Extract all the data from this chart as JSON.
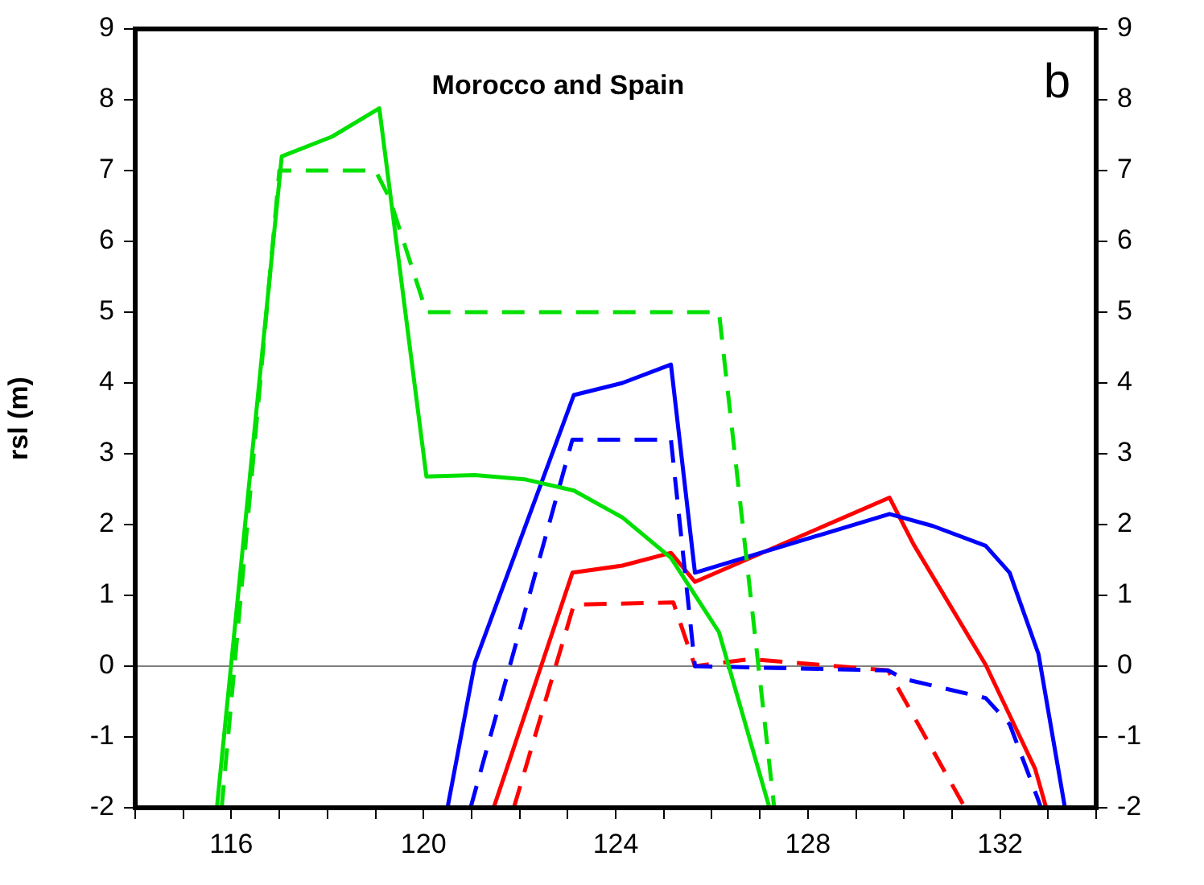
{
  "chart_data": {
    "type": "line",
    "title": "Morocco and Spain",
    "ylabel": "rsl (m)",
    "annotations": [
      "b"
    ],
    "xlim": [
      114,
      134
    ],
    "xticks": [
      {
        "value": 114,
        "label": null
      },
      {
        "value": 115,
        "label": null
      },
      116,
      {
        "value": 117,
        "label": null
      },
      {
        "value": 118,
        "label": null
      },
      {
        "value": 119,
        "label": null
      },
      120,
      {
        "value": 121,
        "label": null
      },
      {
        "value": 122,
        "label": null
      },
      {
        "value": 123,
        "label": null
      },
      124,
      {
        "value": 125,
        "label": null
      },
      {
        "value": 126,
        "label": null
      },
      {
        "value": 127,
        "label": null
      },
      128,
      {
        "value": 129,
        "label": null
      },
      {
        "value": 130,
        "label": null
      },
      {
        "value": 131,
        "label": null
      },
      132,
      {
        "value": 133,
        "label": null
      },
      {
        "value": 134,
        "label": null
      }
    ],
    "ylim": [
      -2,
      9
    ],
    "yticks": [
      -2,
      -1,
      0,
      1,
      2,
      3,
      4,
      5,
      6,
      7,
      8,
      9
    ],
    "y2lim": [
      -2,
      9
    ],
    "y2ticks": [
      -2,
      -1,
      0,
      1,
      2,
      3,
      4,
      5,
      6,
      7,
      8,
      9
    ],
    "grid": false,
    "legend": false,
    "marker": "none",
    "ref_lines": [
      {
        "axis": "y",
        "value": 0,
        "color": "#808080",
        "line_style": "solid"
      }
    ],
    "series": [
      {
        "color": "#00e000",
        "line_style": "solid",
        "x": [
          115.7,
          117.05,
          118.1,
          119.08,
          120.06,
          121.07,
          122.1,
          123.13,
          124.14,
          125.15,
          126.15,
          127.2
        ],
        "values": [
          -2,
          7.2,
          7.48,
          7.88,
          2.68,
          2.7,
          2.64,
          2.48,
          2.1,
          1.53,
          0.48,
          -2
        ]
      },
      {
        "color": "#00e000",
        "line_style": "dashed",
        "x": [
          115.8,
          117,
          119,
          119.3,
          120.06,
          126.15,
          127.3
        ],
        "values": [
          -2,
          7,
          7,
          6.6,
          5,
          5,
          -2
        ]
      },
      {
        "color": "#0000ff",
        "line_style": "solid",
        "x": [
          120.5,
          121.07,
          123.13,
          124.14,
          125.15,
          125.65,
          129.7,
          130.6,
          131.7,
          132.2,
          132.8,
          133.35
        ],
        "values": [
          -2,
          0.05,
          3.83,
          4,
          4.26,
          1.32,
          2.15,
          1.98,
          1.7,
          1.32,
          0.17,
          -2
        ]
      },
      {
        "color": "#0000ff",
        "line_style": "dashed",
        "x": [
          120.98,
          123.1,
          125.15,
          125.65,
          129.67,
          130,
          131.7,
          132.2,
          132.8,
          132.85
        ],
        "values": [
          -2,
          3.2,
          3.2,
          0,
          -0.06,
          -0.18,
          -0.45,
          -0.82,
          -1.9,
          -2
        ]
      },
      {
        "color": "#ff0000",
        "line_style": "solid",
        "x": [
          121.46,
          123.1,
          124.14,
          125.15,
          125.65,
          129.7,
          130.2,
          131.7,
          132.73,
          132.96
        ],
        "values": [
          -2,
          1.32,
          1.42,
          1.6,
          1.19,
          2.38,
          1.72,
          0.02,
          -1.45,
          -2
        ]
      },
      {
        "color": "#ff0000",
        "line_style": "dashed",
        "x": [
          121.88,
          123.13,
          125.2,
          125.65,
          126.8,
          127.7,
          129.67,
          131.27
        ],
        "values": [
          -2,
          0.87,
          0.9,
          0,
          0.1,
          0.05,
          -0.06,
          -2
        ]
      }
    ]
  }
}
